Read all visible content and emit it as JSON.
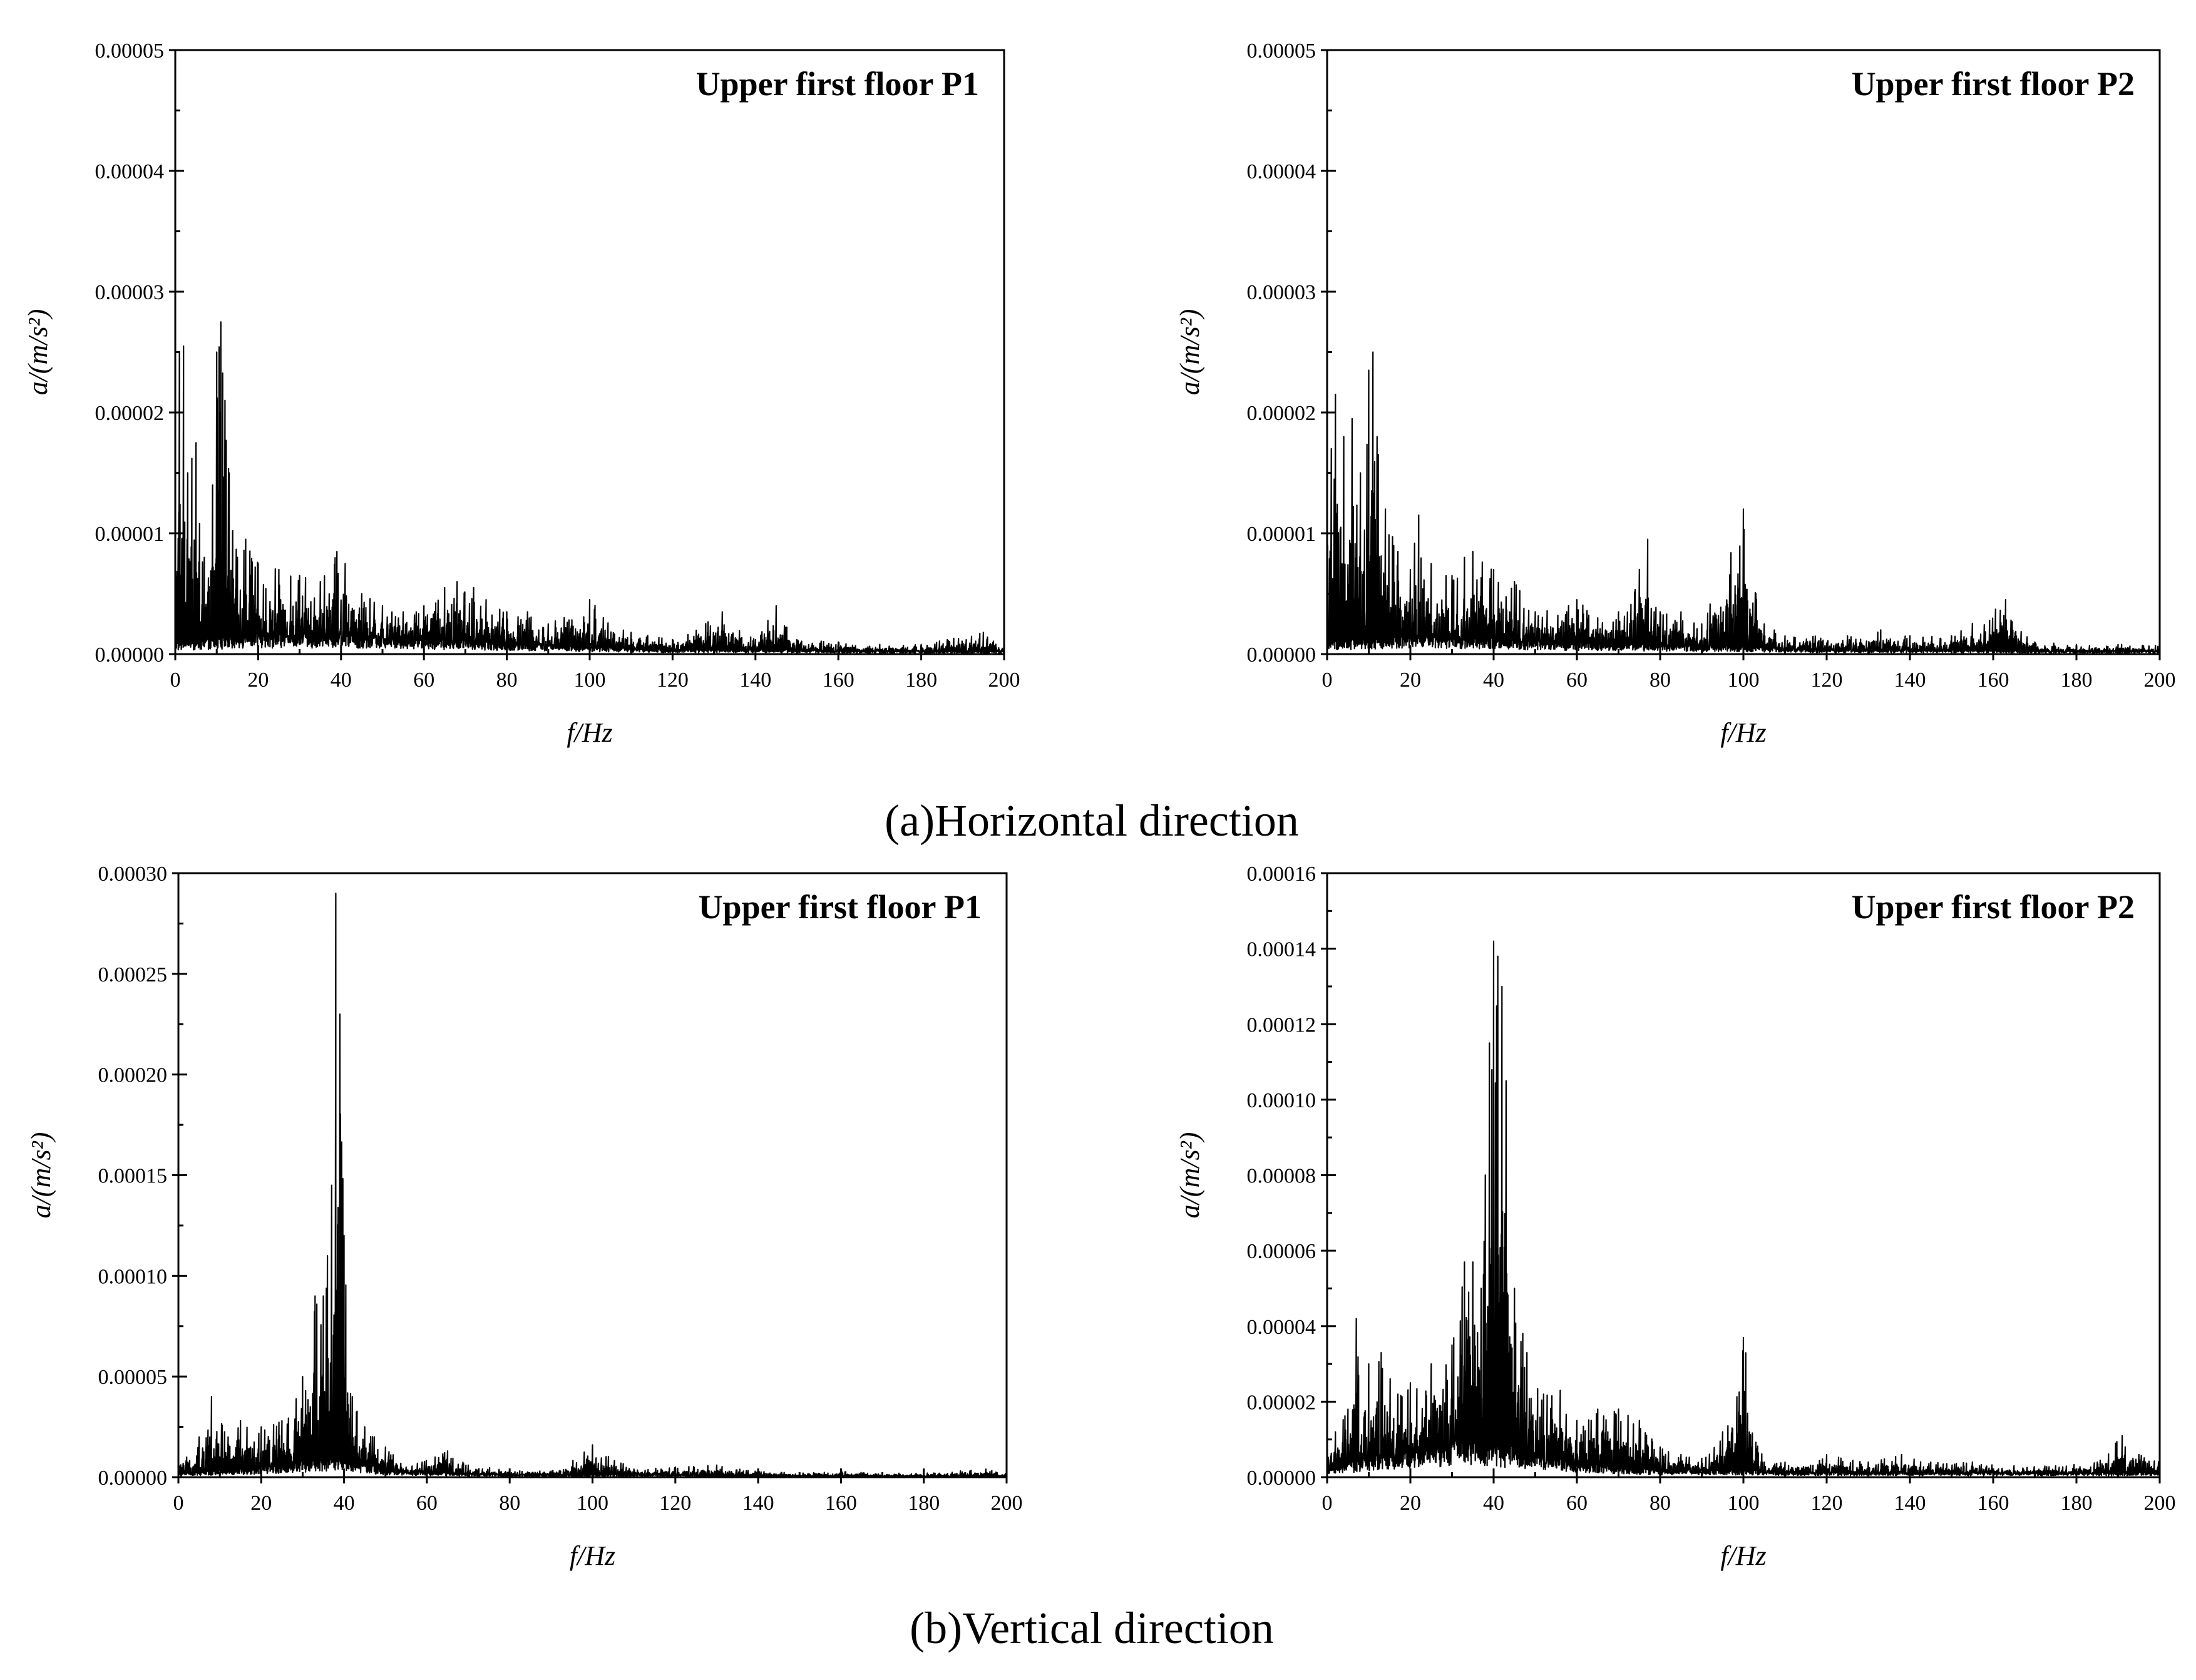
{
  "captions": {
    "horizontal": "(a)Horizontal direction",
    "vertical": "(b)Vertical direction"
  },
  "chart_data": [
    {
      "type": "line",
      "panel": "a-left",
      "title": "Upper first floor P1",
      "xlabel": "f/Hz",
      "ylabel": "a/(m/s²)",
      "xlim": [
        0,
        200
      ],
      "ylim": [
        0,
        5e-05
      ],
      "xticks": [
        0,
        20,
        40,
        60,
        80,
        100,
        120,
        140,
        160,
        180,
        200
      ],
      "yticks": [
        "0.00000",
        "0.00001",
        "0.00002",
        "0.00003",
        "0.00004",
        "0.00005"
      ],
      "grid": false,
      "peaks": [
        [
          1,
          2.5e-05
        ],
        [
          2,
          2.55e-05
        ],
        [
          3,
          1.5e-05
        ],
        [
          5,
          1.75e-05
        ],
        [
          7,
          8e-06
        ],
        [
          9,
          1.4e-05
        ],
        [
          10,
          2.5e-05
        ],
        [
          11,
          2.75e-05
        ],
        [
          12,
          2.1e-05
        ],
        [
          13,
          1.5e-05
        ],
        [
          15,
          8e-06
        ],
        [
          17,
          9.5e-06
        ],
        [
          20,
          7.5e-06
        ],
        [
          25,
          7e-06
        ],
        [
          30,
          6.5e-06
        ],
        [
          35,
          6e-06
        ],
        [
          39,
          8.5e-06
        ],
        [
          41,
          7.5e-06
        ],
        [
          45,
          5e-06
        ],
        [
          50,
          4e-06
        ],
        [
          55,
          3.5e-06
        ],
        [
          60,
          4e-06
        ],
        [
          65,
          5.5e-06
        ],
        [
          68,
          6e-06
        ],
        [
          72,
          5.5e-06
        ],
        [
          75,
          4.5e-06
        ],
        [
          80,
          3.5e-06
        ],
        [
          85,
          3.5e-06
        ],
        [
          90,
          2.5e-06
        ],
        [
          100,
          4.5e-06
        ],
        [
          110,
          1.8e-06
        ],
        [
          120,
          1.2e-06
        ],
        [
          132,
          3.5e-06
        ],
        [
          140,
          1.2e-06
        ],
        [
          145,
          4e-06
        ],
        [
          150,
          1.2e-06
        ],
        [
          160,
          1e-06
        ],
        [
          170,
          8e-07
        ],
        [
          180,
          8e-07
        ],
        [
          195,
          1.8e-06
        ],
        [
          200,
          8e-07
        ]
      ],
      "baseline": [
        [
          0,
          1.5e-06
        ],
        [
          20,
          2.5e-06
        ],
        [
          40,
          2.5e-06
        ],
        [
          60,
          2e-06
        ],
        [
          80,
          1.5e-06
        ],
        [
          100,
          1e-06
        ],
        [
          120,
          6e-07
        ],
        [
          140,
          6e-07
        ],
        [
          160,
          5e-07
        ],
        [
          180,
          4e-07
        ],
        [
          200,
          4e-07
        ]
      ]
    },
    {
      "type": "line",
      "panel": "a-right",
      "title": "Upper first floor P2",
      "xlabel": "f/Hz",
      "ylabel": "a/(m/s²)",
      "xlim": [
        0,
        200
      ],
      "ylim": [
        0,
        5e-05
      ],
      "xticks": [
        0,
        20,
        40,
        60,
        80,
        100,
        120,
        140,
        160,
        180,
        200
      ],
      "yticks": [
        "0.00000",
        "0.00001",
        "0.00002",
        "0.00003",
        "0.00004",
        "0.00005"
      ],
      "grid": false,
      "peaks": [
        [
          1,
          1.7e-05
        ],
        [
          2,
          2.15e-05
        ],
        [
          4,
          1.8e-05
        ],
        [
          6,
          1.95e-05
        ],
        [
          8,
          1.5e-05
        ],
        [
          10,
          2.35e-05
        ],
        [
          11,
          2.5e-05
        ],
        [
          12,
          1.8e-05
        ],
        [
          14,
          1.2e-05
        ],
        [
          17,
          8.5e-06
        ],
        [
          20,
          7e-06
        ],
        [
          22,
          1.15e-05
        ],
        [
          25,
          7.5e-06
        ],
        [
          30,
          6.5e-06
        ],
        [
          33,
          8e-06
        ],
        [
          35,
          8.5e-06
        ],
        [
          40,
          7e-06
        ],
        [
          45,
          6e-06
        ],
        [
          50,
          3.5e-06
        ],
        [
          58,
          4e-06
        ],
        [
          60,
          4.5e-06
        ],
        [
          65,
          3e-06
        ],
        [
          70,
          3.5e-06
        ],
        [
          75,
          7e-06
        ],
        [
          77,
          9.5e-06
        ],
        [
          80,
          3.5e-06
        ],
        [
          85,
          3.5e-06
        ],
        [
          90,
          2.5e-06
        ],
        [
          100,
          1.2e-05
        ],
        [
          105,
          2.5e-06
        ],
        [
          110,
          1.5e-06
        ],
        [
          125,
          1.5e-06
        ],
        [
          133,
          2e-06
        ],
        [
          140,
          1.5e-06
        ],
        [
          150,
          1.5e-06
        ],
        [
          163,
          4.5e-06
        ],
        [
          170,
          1e-06
        ],
        [
          180,
          8e-07
        ],
        [
          190,
          8e-07
        ],
        [
          200,
          8e-07
        ]
      ],
      "baseline": [
        [
          0,
          1.5e-06
        ],
        [
          20,
          2.5e-06
        ],
        [
          40,
          2e-06
        ],
        [
          60,
          1.5e-06
        ],
        [
          80,
          1.2e-06
        ],
        [
          100,
          1e-06
        ],
        [
          120,
          6e-07
        ],
        [
          140,
          6e-07
        ],
        [
          160,
          5e-07
        ],
        [
          180,
          4e-07
        ],
        [
          200,
          4e-07
        ]
      ]
    },
    {
      "type": "line",
      "panel": "b-left",
      "title": "Upper first floor P1",
      "xlabel": "f/Hz",
      "ylabel": "a/(m/s²)",
      "xlim": [
        0,
        200
      ],
      "ylim": [
        0,
        0.0003
      ],
      "xticks": [
        0,
        20,
        40,
        60,
        80,
        100,
        120,
        140,
        160,
        180,
        200
      ],
      "yticks": [
        "0.00000",
        "0.00005",
        "0.00010",
        "0.00015",
        "0.00020",
        "0.00025",
        "0.00030"
      ],
      "grid": false,
      "peaks": [
        [
          2,
          1e-05
        ],
        [
          5,
          2e-05
        ],
        [
          8,
          4e-05
        ],
        [
          12,
          2e-05
        ],
        [
          15,
          2.8e-05
        ],
        [
          20,
          2.5e-05
        ],
        [
          25,
          2.8e-05
        ],
        [
          30,
          5e-05
        ],
        [
          33,
          9e-05
        ],
        [
          35,
          9e-05
        ],
        [
          36,
          0.00011
        ],
        [
          37,
          0.000145
        ],
        [
          38,
          0.00029
        ],
        [
          39,
          0.00023
        ],
        [
          40,
          0.00012
        ],
        [
          42,
          4e-05
        ],
        [
          45,
          2.5e-05
        ],
        [
          50,
          1.5e-05
        ],
        [
          55,
          5e-06
        ],
        [
          62,
          1e-05
        ],
        [
          65,
          1.3e-05
        ],
        [
          70,
          6e-06
        ],
        [
          80,
          4e-06
        ],
        [
          90,
          3e-06
        ],
        [
          100,
          1.6e-05
        ],
        [
          110,
          4e-06
        ],
        [
          120,
          5e-06
        ],
        [
          130,
          6e-06
        ],
        [
          140,
          3e-06
        ],
        [
          150,
          2e-06
        ],
        [
          160,
          3e-06
        ],
        [
          170,
          2e-06
        ],
        [
          180,
          2e-06
        ],
        [
          195,
          4e-06
        ],
        [
          200,
          2e-06
        ]
      ],
      "baseline": [
        [
          0,
          3e-06
        ],
        [
          20,
          8e-06
        ],
        [
          30,
          1.2e-05
        ],
        [
          40,
          1.5e-05
        ],
        [
          50,
          6e-06
        ],
        [
          60,
          4e-06
        ],
        [
          80,
          2e-06
        ],
        [
          100,
          2e-06
        ],
        [
          120,
          2e-06
        ],
        [
          140,
          1e-06
        ],
        [
          160,
          1e-06
        ],
        [
          200,
          1e-06
        ]
      ]
    },
    {
      "type": "line",
      "panel": "b-right",
      "title": "Upper first floor P2",
      "xlabel": "f/Hz",
      "ylabel": "a/(m/s²)",
      "xlim": [
        0,
        200
      ],
      "ylim": [
        0,
        0.00016
      ],
      "xticks": [
        0,
        20,
        40,
        60,
        80,
        100,
        120,
        140,
        160,
        180,
        200
      ],
      "yticks": [
        "0.00000",
        "0.00002",
        "0.00004",
        "0.00006",
        "0.00008",
        "0.00010",
        "0.00012",
        "0.00014",
        "0.00016"
      ],
      "grid": false,
      "peaks": [
        [
          2,
          1.2e-05
        ],
        [
          5,
          1.8e-05
        ],
        [
          7,
          4.2e-05
        ],
        [
          10,
          3e-05
        ],
        [
          13,
          3.3e-05
        ],
        [
          17,
          2.2e-05
        ],
        [
          20,
          2.5e-05
        ],
        [
          25,
          3e-05
        ],
        [
          30,
          3.5e-05
        ],
        [
          33,
          5.7e-05
        ],
        [
          35,
          5.7e-05
        ],
        [
          37,
          5e-05
        ],
        [
          39,
          0.000115
        ],
        [
          40,
          0.000142
        ],
        [
          41,
          0.000138
        ],
        [
          42,
          0.00013
        ],
        [
          43,
          0.000105
        ],
        [
          45,
          5e-05
        ],
        [
          48,
          3.3e-05
        ],
        [
          52,
          2.2e-05
        ],
        [
          56,
          2.3e-05
        ],
        [
          60,
          1.5e-05
        ],
        [
          65,
          1.8e-05
        ],
        [
          70,
          1.8e-05
        ],
        [
          75,
          1.5e-05
        ],
        [
          80,
          8e-06
        ],
        [
          85,
          6e-06
        ],
        [
          90,
          5e-06
        ],
        [
          95,
          1.2e-05
        ],
        [
          100,
          3.7e-05
        ],
        [
          105,
          4e-06
        ],
        [
          110,
          4e-06
        ],
        [
          120,
          6e-06
        ],
        [
          130,
          4e-06
        ],
        [
          138,
          6e-06
        ],
        [
          145,
          4e-06
        ],
        [
          155,
          4e-06
        ],
        [
          165,
          3e-06
        ],
        [
          175,
          3e-06
        ],
        [
          185,
          4e-06
        ],
        [
          191,
          1.1e-05
        ],
        [
          195,
          6e-06
        ],
        [
          200,
          4e-06
        ]
      ],
      "baseline": [
        [
          0,
          4e-06
        ],
        [
          20,
          1.2e-05
        ],
        [
          35,
          1.5e-05
        ],
        [
          45,
          1.2e-05
        ],
        [
          60,
          6e-06
        ],
        [
          80,
          3e-06
        ],
        [
          100,
          3e-06
        ],
        [
          120,
          2e-06
        ],
        [
          150,
          2e-06
        ],
        [
          180,
          2e-06
        ],
        [
          200,
          2e-06
        ]
      ]
    }
  ]
}
